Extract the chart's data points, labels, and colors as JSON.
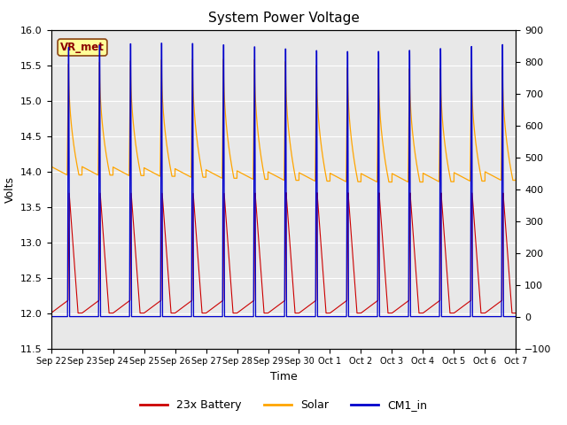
{
  "title": "System Power Voltage",
  "xlabel": "Time",
  "ylabel_left": "Volts",
  "ylim_left": [
    11.5,
    16.0
  ],
  "ylim_right": [
    -100,
    900
  ],
  "yticks_left": [
    11.5,
    12.0,
    12.5,
    13.0,
    13.5,
    14.0,
    14.5,
    15.0,
    15.5,
    16.0
  ],
  "yticks_right": [
    -100,
    0,
    100,
    200,
    300,
    400,
    500,
    600,
    700,
    800,
    900
  ],
  "x_labels": [
    "Sep 22",
    "Sep 23",
    "Sep 24",
    "Sep 25",
    "Sep 26",
    "Sep 27",
    "Sep 28",
    "Sep 29",
    "Sep 30",
    "Oct 1",
    "Oct 2",
    "Oct 3",
    "Oct 4",
    "Oct 5",
    "Oct 6",
    "Oct 7"
  ],
  "n_cycles": 15,
  "battery_color": "#cc0000",
  "solar_color": "#ffa500",
  "cm1_color": "#0000cc",
  "background_color": "#ffffff",
  "plot_bg_color": "#e8e8e8",
  "grid_color": "#ffffff",
  "legend_labels": [
    "23x Battery",
    "Solar",
    "CM1_in"
  ],
  "vr_met_label": "VR_met",
  "title_fontsize": 11,
  "label_fontsize": 9,
  "tick_fontsize": 8
}
